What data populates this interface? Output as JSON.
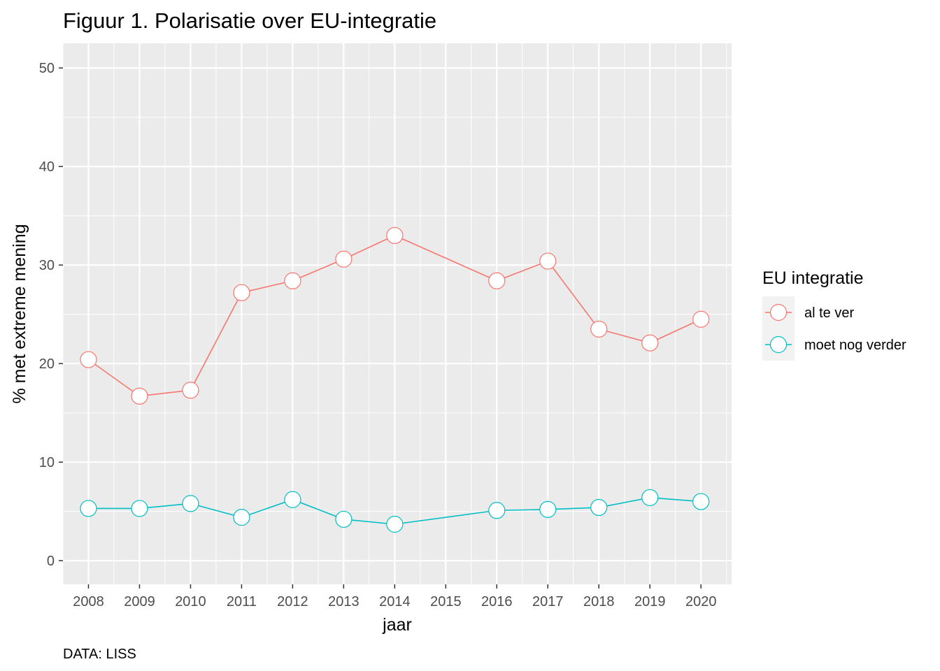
{
  "chart_data": {
    "type": "line",
    "title": "Figuur 1. Polarisatie over EU-integratie",
    "xlabel": "jaar",
    "ylabel": "% met extreme mening",
    "caption": "DATA: LISS",
    "xlim": [
      2007.5,
      2020.6
    ],
    "ylim": [
      -2.4,
      52.5
    ],
    "x_ticks": [
      2008,
      2009,
      2010,
      2011,
      2012,
      2013,
      2014,
      2015,
      2016,
      2017,
      2018,
      2019,
      2020
    ],
    "y_ticks": [
      0,
      10,
      20,
      30,
      40,
      50
    ],
    "grid": true,
    "legend": {
      "title": "EU integratie",
      "position": "right"
    },
    "series": [
      {
        "name": "al te ver",
        "color": "#F8766D",
        "x": [
          2008,
          2009,
          2010,
          2011,
          2012,
          2013,
          2014,
          2016,
          2017,
          2018,
          2019,
          2020
        ],
        "values": [
          20.4,
          16.7,
          17.3,
          27.2,
          28.4,
          30.6,
          33.0,
          28.4,
          30.4,
          23.5,
          22.1,
          24.5
        ]
      },
      {
        "name": "moet nog verder",
        "color": "#00BFC4",
        "x": [
          2008,
          2009,
          2010,
          2011,
          2012,
          2013,
          2014,
          2016,
          2017,
          2018,
          2019,
          2020
        ],
        "values": [
          5.3,
          5.3,
          5.8,
          4.4,
          6.2,
          4.2,
          3.7,
          5.1,
          5.2,
          5.4,
          6.4,
          6.0
        ]
      }
    ]
  }
}
